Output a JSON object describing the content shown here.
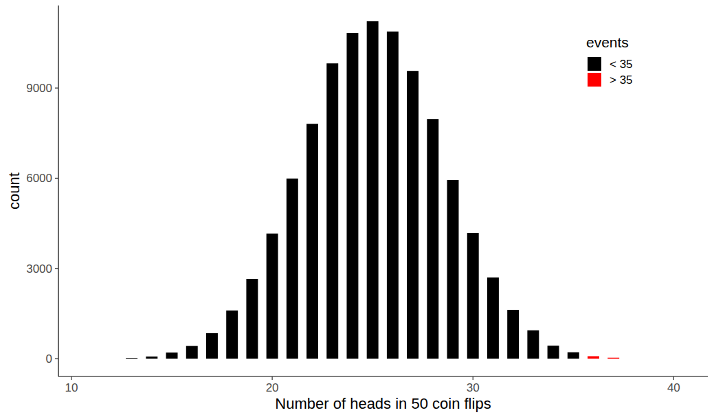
{
  "chart_data": {
    "type": "bar",
    "x_label": "Number of heads in 50 coin flips",
    "y_label": "count",
    "legend_title": "events",
    "x": [
      13,
      14,
      15,
      16,
      17,
      18,
      19,
      20,
      21,
      22,
      23,
      24,
      25,
      26,
      27,
      28,
      29,
      30,
      31,
      32,
      33,
      34,
      35,
      36,
      37
    ],
    "series": [
      {
        "name": "< 35",
        "color": "#000000",
        "values": [
          20,
          70,
          200,
          420,
          845,
          1600,
          2650,
          4160,
          5990,
          7810,
          9820,
          10830,
          11220,
          10880,
          9570,
          7970,
          5940,
          4180,
          2700,
          1620,
          940,
          430,
          210,
          null,
          null
        ]
      },
      {
        "name": "> 35",
        "color": "#ff0000",
        "values": [
          null,
          null,
          null,
          null,
          null,
          null,
          null,
          null,
          null,
          null,
          null,
          null,
          null,
          null,
          null,
          null,
          null,
          null,
          null,
          null,
          null,
          null,
          null,
          80,
          30
        ]
      }
    ],
    "stacked": true,
    "xlim": [
      9.35,
      41.7
    ],
    "xticks": [
      10,
      20,
      30,
      40
    ],
    "ylim": [
      -594,
      11745
    ],
    "yticks": [
      0,
      3000,
      6000,
      9000
    ],
    "grid": false,
    "legend": "top-right"
  }
}
